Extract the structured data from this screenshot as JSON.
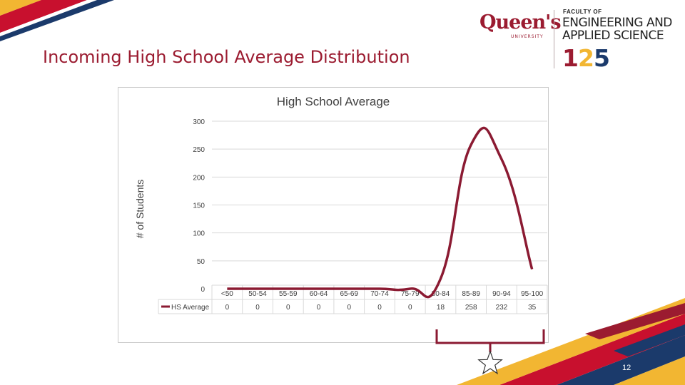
{
  "slide": {
    "title": "Incoming High School Average Distribution",
    "page_number": "12"
  },
  "brand": {
    "university_wordmark": "Queen's",
    "university_small": "UNIVERSITY",
    "faculty_of": "FACULTY OF",
    "faculty_line1": "ENGINEERING AND",
    "faculty_line2": "APPLIED SCIENCE",
    "anniversary_digits": [
      "1",
      "2",
      "5"
    ]
  },
  "colors": {
    "maroon": "#9b1b30",
    "series": "#8b1a32",
    "gold": "#f2b632",
    "navy": "#1b3a6b",
    "red": "#c8102e"
  },
  "icons": [
    "star-icon"
  ],
  "chart_data": {
    "type": "line",
    "title": "High School Average",
    "xlabel": "",
    "ylabel": "# of Students",
    "ylim": [
      0,
      300
    ],
    "yticks": [
      0,
      50,
      100,
      150,
      200,
      250,
      300
    ],
    "grid": true,
    "smooth": true,
    "legend": "data-table-left",
    "categories": [
      "<50",
      "50-54",
      "55-59",
      "60-64",
      "65-69",
      "70-74",
      "75-79",
      "80-84",
      "85-89",
      "90-94",
      "95-100"
    ],
    "series": [
      {
        "name": "HS Average",
        "values": [
          0,
          0,
          0,
          0,
          0,
          0,
          0,
          18,
          258,
          232,
          35
        ]
      }
    ]
  }
}
